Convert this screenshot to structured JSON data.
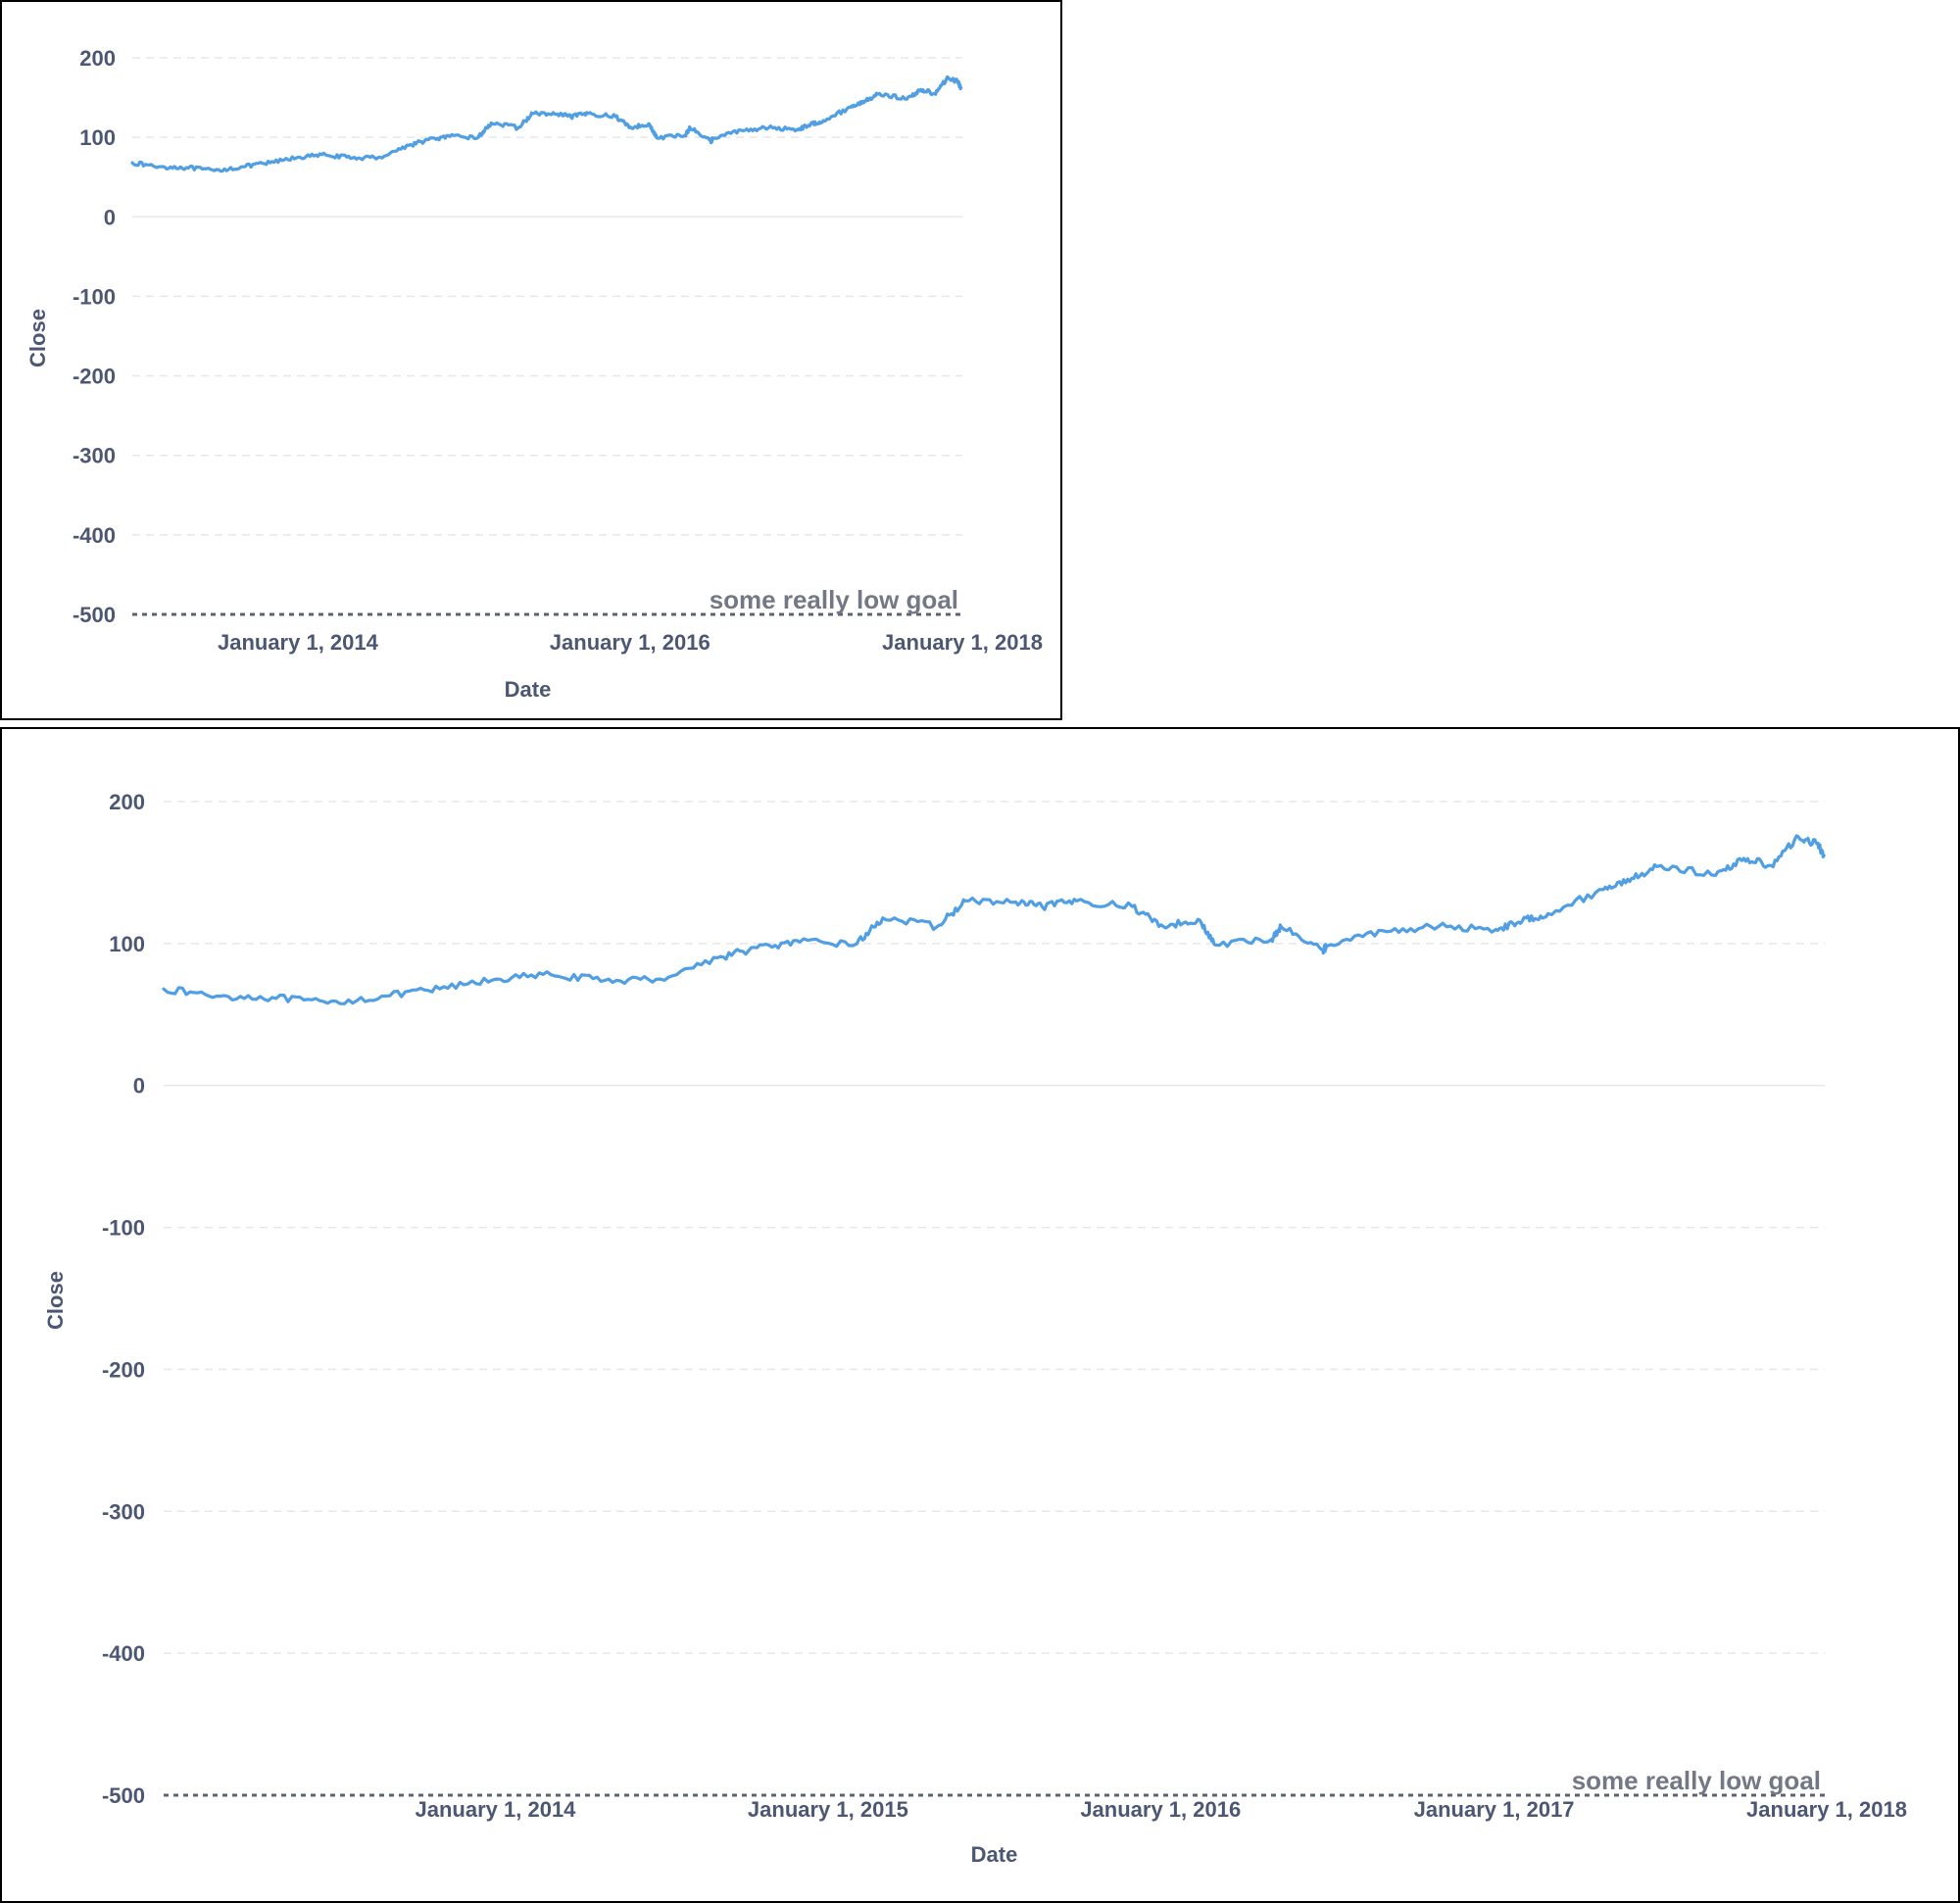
{
  "charts": [
    {
      "y_axis_title": "Close",
      "x_axis_title": "Date",
      "goal_label": "some really low goal"
    },
    {
      "y_axis_title": "Close",
      "x_axis_title": "Date",
      "goal_label": "some really low goal"
    }
  ],
  "chart_data": [
    {
      "type": "line",
      "xlabel": "Date",
      "ylabel": "Close",
      "ylim": [
        -500,
        200
      ],
      "y_ticks": [
        200,
        100,
        0,
        -100,
        -200,
        -300,
        -400,
        -500
      ],
      "x_ticks": [
        {
          "date": "2014-01-01",
          "label": "January 1, 2014"
        },
        {
          "date": "2016-01-01",
          "label": "January 1, 2016"
        },
        {
          "date": "2018-01-01",
          "label": "January 1, 2018"
        }
      ],
      "grid": true,
      "goal": {
        "value": -500,
        "label": "some really low goal"
      },
      "series_color": "#509ee3",
      "series": [
        {
          "x": [
            "2013-01-02",
            "2013-03-01",
            "2013-05-01",
            "2013-07-01",
            "2013-09-03",
            "2013-11-01",
            "2014-01-02",
            "2014-03-03",
            "2014-05-01",
            "2014-07-01",
            "2014-09-02",
            "2014-10-15",
            "2014-12-01",
            "2015-02-02",
            "2015-03-02",
            "2015-05-01",
            "2015-06-01",
            "2015-07-24",
            "2015-08-24",
            "2015-10-01",
            "2015-12-01",
            "2016-01-04",
            "2016-02-11",
            "2016-03-01",
            "2016-05-02",
            "2016-05-12",
            "2016-06-27",
            "2016-07-01",
            "2016-09-01",
            "2016-11-01",
            "2017-01-03",
            "2017-02-01",
            "2017-03-01",
            "2017-05-01",
            "2017-06-01",
            "2017-07-03",
            "2017-09-01",
            "2017-10-02",
            "2017-11-01",
            "2017-12-01",
            "2017-12-22",
            "2017-12-29"
          ],
          "y": [
            68,
            63,
            62,
            58,
            63,
            68,
            75,
            78,
            74,
            75,
            90,
            97,
            101,
            100,
            118,
            112,
            130,
            129,
            126,
            130,
            126,
            112,
            117,
            99,
            103,
            112,
            95,
            98,
            109,
            112,
            110,
            116,
            121,
            138,
            146,
            155,
            148,
            160,
            155,
            175,
            170,
            162
          ]
        }
      ]
    },
    {
      "type": "line",
      "xlabel": "Date",
      "ylabel": "Close",
      "ylim": [
        -500,
        200
      ],
      "y_ticks": [
        200,
        100,
        0,
        -100,
        -200,
        -300,
        -400,
        -500
      ],
      "x_ticks": [
        {
          "date": "2014-01-01",
          "label": "January 1, 2014"
        },
        {
          "date": "2015-01-01",
          "label": "January 1, 2015"
        },
        {
          "date": "2016-01-01",
          "label": "January 1, 2016"
        },
        {
          "date": "2017-01-01",
          "label": "January 1, 2017"
        },
        {
          "date": "2018-01-01",
          "label": "January 1, 2018"
        }
      ],
      "grid": true,
      "goal": {
        "value": -500,
        "label": "some really low goal"
      },
      "series_color": "#509ee3",
      "series": [
        {
          "x": [
            "2013-01-02",
            "2013-03-01",
            "2013-05-01",
            "2013-07-01",
            "2013-09-03",
            "2013-11-01",
            "2014-01-02",
            "2014-03-03",
            "2014-05-01",
            "2014-07-01",
            "2014-09-02",
            "2014-10-15",
            "2014-12-01",
            "2015-02-02",
            "2015-03-02",
            "2015-05-01",
            "2015-06-01",
            "2015-07-24",
            "2015-08-24",
            "2015-10-01",
            "2015-12-01",
            "2016-01-04",
            "2016-02-11",
            "2016-03-01",
            "2016-05-02",
            "2016-05-12",
            "2016-06-27",
            "2016-07-01",
            "2016-09-01",
            "2016-11-01",
            "2017-01-03",
            "2017-02-01",
            "2017-03-01",
            "2017-05-01",
            "2017-06-01",
            "2017-07-03",
            "2017-09-01",
            "2017-10-02",
            "2017-11-01",
            "2017-12-01",
            "2017-12-22",
            "2017-12-29"
          ],
          "y": [
            68,
            63,
            62,
            58,
            63,
            68,
            75,
            78,
            74,
            75,
            90,
            97,
            101,
            100,
            118,
            112,
            130,
            129,
            126,
            130,
            126,
            112,
            117,
            99,
            103,
            112,
            95,
            98,
            109,
            112,
            110,
            116,
            121,
            138,
            146,
            155,
            148,
            160,
            155,
            175,
            170,
            162
          ]
        }
      ]
    }
  ]
}
